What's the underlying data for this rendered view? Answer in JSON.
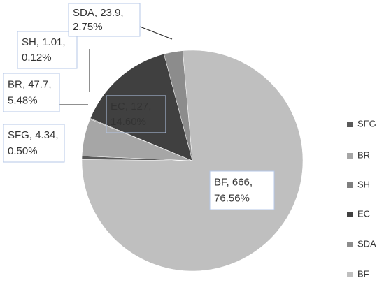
{
  "chart_data": {
    "type": "pie",
    "categories": [
      "SFG",
      "BR",
      "SH",
      "EC",
      "SDA",
      "BF"
    ],
    "values": [
      4.34,
      47.7,
      1.01,
      127,
      23.9,
      666
    ],
    "percent_labels": [
      "0.50%",
      "5.48%",
      "0.12%",
      "14.60%",
      "2.75%",
      "76.56%"
    ],
    "colors": [
      "#595959",
      "#a6a6a6",
      "#7f7f7f",
      "#404040",
      "#8c8c8c",
      "#bfbfbf"
    ],
    "legend": "right"
  }
}
